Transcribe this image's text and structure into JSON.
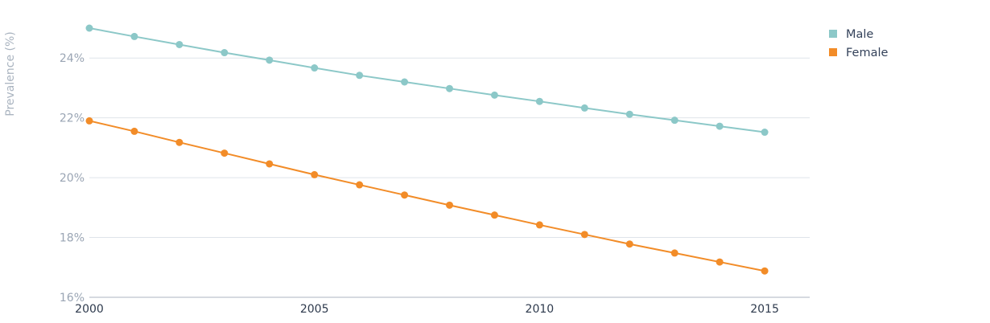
{
  "chart_data": {
    "type": "line",
    "title": "",
    "xlabel": "",
    "ylabel": "Prevalence (%)",
    "x": [
      2000,
      2001,
      2002,
      2003,
      2004,
      2005,
      2006,
      2007,
      2008,
      2009,
      2010,
      2011,
      2012,
      2013,
      2014,
      2015
    ],
    "xlim": [
      2000,
      2016
    ],
    "x_ticks": [
      2000,
      2005,
      2010,
      2015
    ],
    "x_tick_labels": [
      "2000",
      "2005",
      "2010",
      "2015"
    ],
    "ylim": [
      16,
      25
    ],
    "y_ticks": [
      16,
      18,
      20,
      22,
      24
    ],
    "y_tick_labels": [
      "16%",
      "18%",
      "20%",
      "22%",
      "24%"
    ],
    "grid": true,
    "legend_position": "top-right",
    "series": [
      {
        "name": "Male",
        "color": "#8cc8c8",
        "values": [
          25.0,
          24.72,
          24.45,
          24.18,
          23.93,
          23.67,
          23.42,
          23.2,
          22.98,
          22.76,
          22.55,
          22.33,
          22.12,
          21.92,
          21.72,
          21.52
        ]
      },
      {
        "name": "Female",
        "color": "#f28c28",
        "values": [
          21.9,
          21.55,
          21.18,
          20.82,
          20.46,
          20.1,
          19.76,
          19.42,
          19.08,
          18.75,
          18.42,
          18.1,
          17.78,
          17.48,
          17.18,
          16.88
        ]
      }
    ]
  }
}
